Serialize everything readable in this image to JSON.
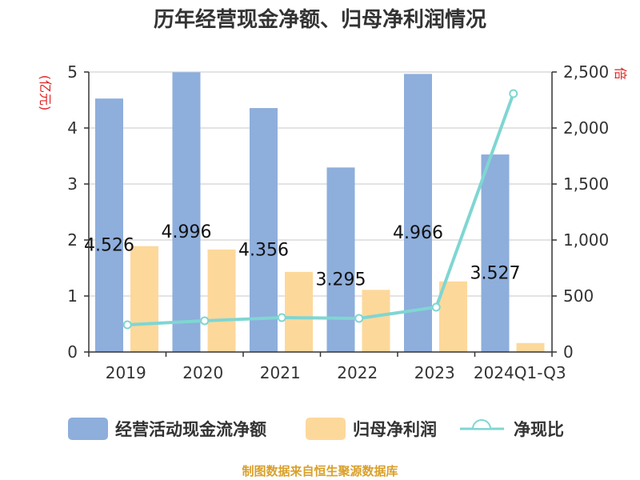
{
  "chart_data": {
    "type": "bar",
    "title": "历年经营现金净额、归母净利润情况",
    "categories": [
      "2019",
      "2020",
      "2021",
      "2022",
      "2023",
      "2024Q1-Q3"
    ],
    "series": [
      {
        "name": "经营活动现金流净额",
        "type": "bar",
        "axis": "left",
        "color": "#8EAEDC",
        "values": [
          4.526,
          4.996,
          4.356,
          3.295,
          4.966,
          3.527
        ],
        "labels": [
          "4.526",
          "4.996",
          "4.356",
          "3.295",
          "4.966",
          "3.527"
        ]
      },
      {
        "name": "归母净利润",
        "type": "bar",
        "axis": "left",
        "color": "#FDD89B",
        "values": [
          1.89,
          1.83,
          1.43,
          1.11,
          1.26,
          0.16
        ]
      },
      {
        "name": "净现比",
        "type": "line",
        "axis": "right",
        "color": "#7FD6D2",
        "values": [
          243,
          279,
          307,
          300,
          400,
          2307
        ]
      }
    ],
    "ylabel": "(亿元)",
    "ylabel_right": "倍",
    "ylim": [
      0,
      5
    ],
    "yticks": [
      "0",
      "1",
      "2",
      "3",
      "4",
      "5"
    ],
    "ylim_right": [
      0,
      2500
    ],
    "yticks_right": [
      "0",
      "500",
      "1,000",
      "1,500",
      "2,000",
      "2,500"
    ],
    "grid": true,
    "legend_position": "bottom"
  },
  "legend": {
    "items": [
      "经营活动现金流净额",
      "归母净利润",
      "净现比"
    ]
  },
  "footer": "制图数据来自恒生聚源数据库"
}
